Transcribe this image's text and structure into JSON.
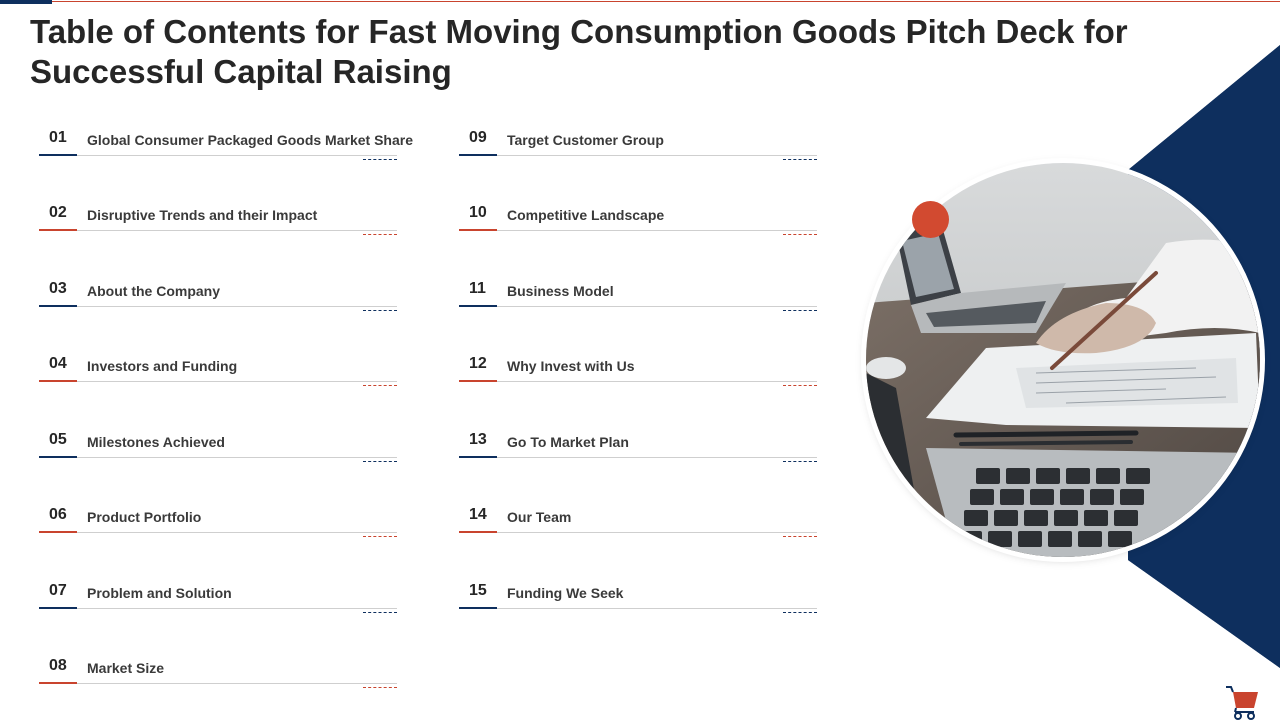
{
  "title": "Table of Contents for Fast Moving Consumption Goods Pitch Deck for Successful Capital Raising",
  "colors": {
    "navy": "#0e2f5e",
    "red": "#c9442e",
    "text": "#262626"
  },
  "toc": [
    {
      "num": "01",
      "label": "Global Consumer Packaged Goods Market Share"
    },
    {
      "num": "02",
      "label": "Disruptive  Trends and their Impact"
    },
    {
      "num": "03",
      "label": "About the Company"
    },
    {
      "num": "04",
      "label": "Investors  and Funding"
    },
    {
      "num": "05",
      "label": "Milestones Achieved"
    },
    {
      "num": "06",
      "label": "Product Portfolio"
    },
    {
      "num": "07",
      "label": "Problem and Solution"
    },
    {
      "num": "08",
      "label": "Market Size"
    },
    {
      "num": "09",
      "label": "Target Customer  Group"
    },
    {
      "num": "10",
      "label": "Competitive Landscape"
    },
    {
      "num": "11",
      "label": "Business  Model"
    },
    {
      "num": "12",
      "label": "Why Invest with Us"
    },
    {
      "num": "13",
      "label": "Go To Market Plan"
    },
    {
      "num": "14",
      "label": "Our Team"
    },
    {
      "num": "15",
      "label": "Funding We Seek"
    }
  ],
  "icons": {
    "cart": "shopping-cart-icon",
    "photo": "laptop-desk-photo"
  }
}
